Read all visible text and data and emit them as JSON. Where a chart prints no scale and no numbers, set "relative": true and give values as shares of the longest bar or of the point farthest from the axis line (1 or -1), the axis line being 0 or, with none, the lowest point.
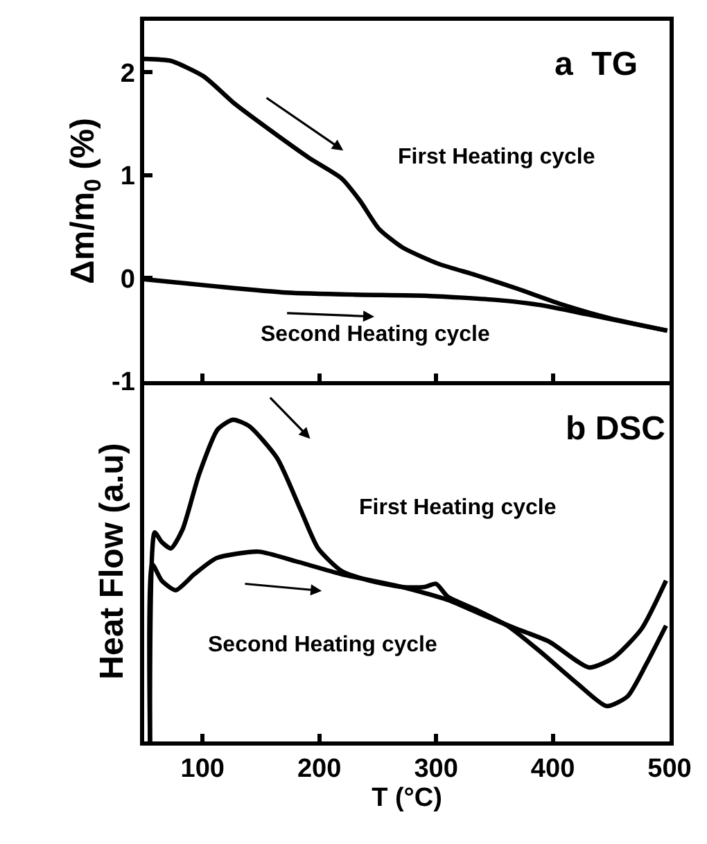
{
  "chart_data": [
    {
      "type": "line",
      "ylabel": "Δm/m$_{0}$ (%)",
      "xlim": [
        50,
        500
      ],
      "xticks": [
        100,
        200,
        300,
        400,
        500
      ],
      "ylim": [
        -1,
        2.5
      ],
      "yticks": [
        -1,
        0,
        1,
        2
      ],
      "tick_labels": "y",
      "marker": "none",
      "line_style": "solid",
      "annotations": [
        "a  TG",
        "First Heating cycle",
        "Second Heating cycle"
      ],
      "series": [
        {
          "color": "#000000",
          "x": [
            50,
            73,
            101,
            128,
            160,
            191,
            219,
            235,
            251,
            271,
            302,
            334,
            369,
            409,
            449,
            498
          ],
          "values": [
            2.13,
            2.11,
            1.96,
            1.69,
            1.42,
            1.17,
            0.97,
            0.75,
            0.48,
            0.3,
            0.14,
            0.03,
            -0.1,
            -0.26,
            -0.39,
            -0.51
          ]
        },
        {
          "color": "#000000",
          "x": [
            50,
            112,
            172,
            231,
            290,
            350,
            389,
            429,
            468,
            498
          ],
          "values": [
            -0.01,
            -0.08,
            -0.14,
            -0.16,
            -0.17,
            -0.21,
            -0.26,
            -0.35,
            -0.44,
            -0.51
          ]
        }
      ]
    },
    {
      "type": "line",
      "relative": true,
      "xlabel": "T (°C)",
      "ylabel": "Heat Flow (a.u)",
      "xlim": [
        50,
        500
      ],
      "xticks": [
        100,
        200,
        300,
        400,
        500
      ],
      "tick_labels": "x",
      "marker": "none",
      "line_style": "solid",
      "annotations": [
        "b DSC",
        "First Heating cycle",
        "Second Heating cycle"
      ],
      "series": [
        {
          "color": "#000000",
          "x": [
            55,
            59,
            65,
            73,
            83,
            97,
            113,
            126,
            140,
            164,
            184,
            199,
            219,
            243,
            271,
            290,
            300,
            310,
            334,
            361,
            389,
            421,
            446,
            464,
            480,
            497
          ],
          "values": [
            0.0,
            0.65,
            0.62,
            0.6,
            0.66,
            0.83,
            0.97,
            1.0,
            0.98,
            0.88,
            0.72,
            0.6,
            0.53,
            0.5,
            0.48,
            0.48,
            0.49,
            0.45,
            0.41,
            0.36,
            0.28,
            0.18,
            0.11,
            0.14,
            0.24,
            0.36
          ]
        },
        {
          "color": "#000000",
          "x": [
            55,
            57,
            65,
            77,
            93,
            112,
            148,
            180,
            219,
            271,
            310,
            342,
            369,
            397,
            431,
            452,
            476,
            497
          ],
          "values": [
            0.0,
            0.55,
            0.5,
            0.47,
            0.52,
            0.57,
            0.59,
            0.56,
            0.52,
            0.48,
            0.44,
            0.39,
            0.35,
            0.31,
            0.23,
            0.26,
            0.35,
            0.5
          ]
        }
      ]
    }
  ]
}
